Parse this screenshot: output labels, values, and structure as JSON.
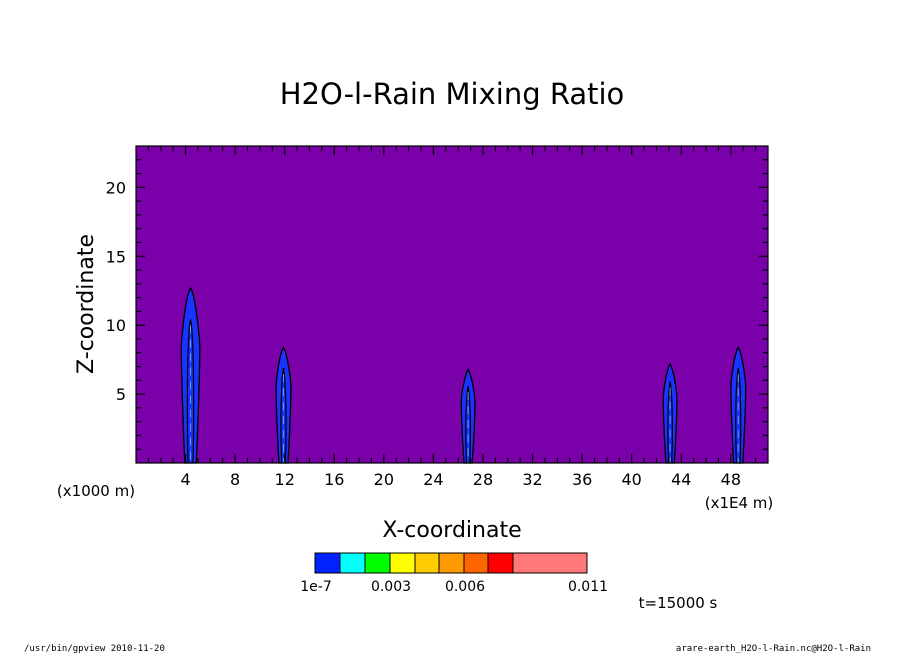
{
  "chart_data": {
    "type": "heatmap",
    "title": "H2O-l-Rain Mixing Ratio",
    "xlabel": "X-coordinate",
    "ylabel": "Z-coordinate",
    "x_unit": "(x1E4 m)",
    "y_unit": "(x1000 m)",
    "x_ticks": [
      4,
      8,
      12,
      16,
      20,
      24,
      28,
      32,
      36,
      40,
      44,
      48
    ],
    "y_ticks": [
      5,
      10,
      15,
      20
    ],
    "xlim": [
      0,
      51
    ],
    "ylim": [
      0,
      23
    ],
    "background_color": "#7a00aa",
    "cells": [
      {
        "x": 4.4,
        "top": 12.7,
        "halfwidth": 0.75
      },
      {
        "x": 11.9,
        "top": 8.4,
        "halfwidth": 0.6
      },
      {
        "x": 26.8,
        "top": 6.8,
        "halfwidth": 0.55
      },
      {
        "x": 43.1,
        "top": 7.2,
        "halfwidth": 0.55
      },
      {
        "x": 48.6,
        "top": 8.4,
        "halfwidth": 0.6
      }
    ],
    "colorbar": {
      "colors": [
        "#0022ff",
        "#00ffff",
        "#00ff00",
        "#ffff00",
        "#ffcc00",
        "#ff9900",
        "#ff6600",
        "#ff0000",
        "#ff7777"
      ],
      "labels": [
        "1e-7",
        "0.003",
        "0.006",
        "0.011"
      ]
    },
    "annotation": "t=15000 s"
  },
  "footer": {
    "left": "/usr/bin/gpview  2010-11-20",
    "right": "arare-earth_H2O-l-Rain.nc@H2O-l-Rain"
  }
}
